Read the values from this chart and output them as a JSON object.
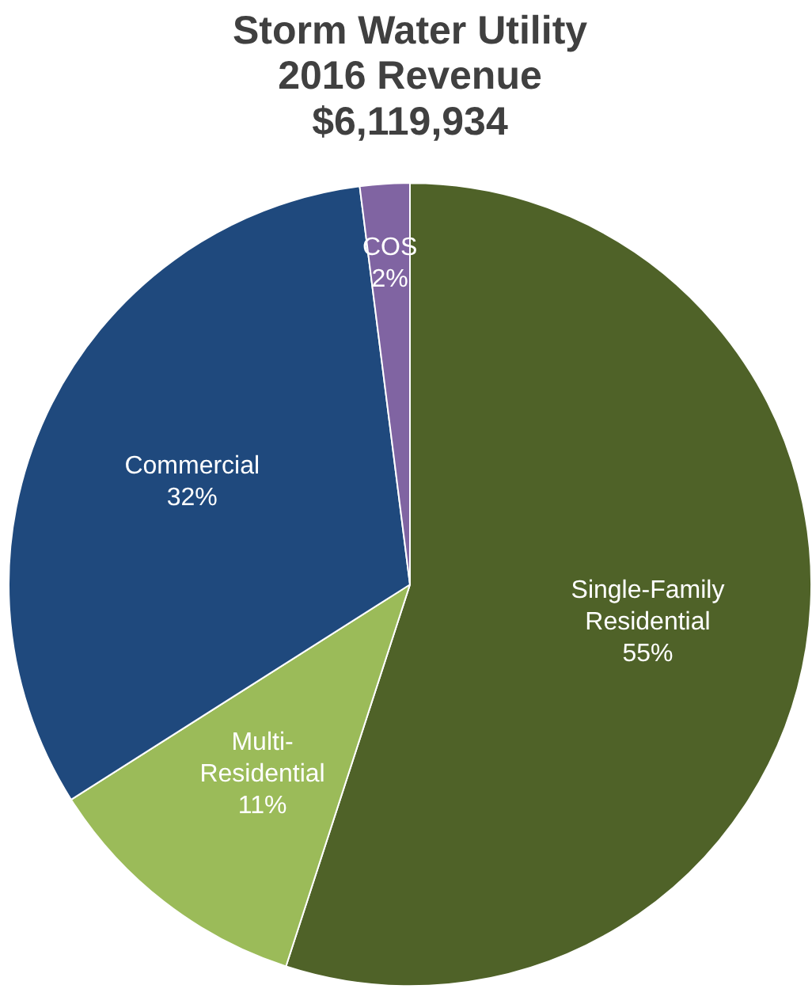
{
  "chart_data": {
    "type": "pie",
    "title": "Storm Water Utility\n2016 Revenue\n$6,119,934",
    "categories": [
      "Single-Family\nResidential",
      "Multi-\nResidential",
      "Commercial",
      "COS"
    ],
    "values": [
      55,
      11,
      32,
      2
    ],
    "colors": [
      "#4f6228",
      "#9bbb59",
      "#1f497d",
      "#8064a2"
    ],
    "value_labels": [
      "55%",
      "11%",
      "32%",
      "2%"
    ],
    "legend": false
  }
}
